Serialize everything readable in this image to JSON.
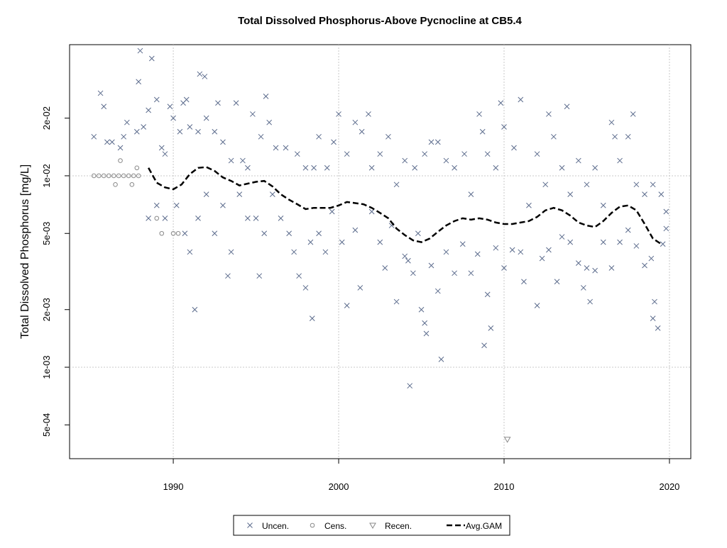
{
  "chart_data": {
    "type": "scatter",
    "title": "Total Dissolved Phosphorus-Above Pycnocline at CB5.4",
    "y_label": "Total Dissolved Phosphorus [mg/L]",
    "log_y": true,
    "grid": true,
    "legend_position": "bottom",
    "xlim": [
      1983.73,
      2021.29
    ],
    "ylim": [
      0.000333,
      0.0484
    ],
    "xticks": [
      1990,
      2000,
      2010,
      2020
    ],
    "yticks": [
      {
        "value": 0.0005,
        "label": "5e-04"
      },
      {
        "value": 0.001,
        "label": "1e-03"
      },
      {
        "value": 0.002,
        "label": "2e-03"
      },
      {
        "value": 0.005,
        "label": "5e-03"
      },
      {
        "value": 0.01,
        "label": "1e-02"
      },
      {
        "value": 0.02,
        "label": "2e-02"
      }
    ],
    "ygrid": [
      0.001,
      0.01
    ],
    "series": [
      {
        "name": "Uncen.",
        "marker": "x",
        "color": "#5b6b8c",
        "x": [
          1985.2,
          1985.6,
          1985.8,
          1986.0,
          1986.3,
          1986.8,
          1987.0,
          1987.2,
          1987.8,
          1987.9,
          1988.0,
          1988.2,
          1988.5,
          1988.7,
          1989.0,
          1989.3,
          1989.5,
          1989.8,
          1990.0,
          1990.4,
          1990.6,
          1990.8,
          1991.0,
          1991.5,
          1991.6,
          1991.9,
          1992.0,
          1992.5,
          1992.7,
          1993.0,
          1993.5,
          1993.8,
          1994.2,
          1994.5,
          1994.8,
          1995.3,
          1995.6,
          1995.8,
          1996.2,
          1996.8,
          1997.5,
          1998.0,
          1998.5,
          1998.8,
          1999.3,
          1999.7,
          2000.0,
          2000.5,
          2001.0,
          2001.4,
          2001.8,
          2002.0,
          2002.5,
          2003.0,
          2003.5,
          2004.0,
          2004.6,
          2005.2,
          2005.6,
          2006.0,
          2006.5,
          2007.0,
          2007.6,
          2008.0,
          2008.5,
          2008.7,
          2009.0,
          2009.5,
          2009.8,
          2010.0,
          2010.6,
          2011.0,
          2011.5,
          2012.0,
          2012.5,
          2012.7,
          2013.0,
          2013.5,
          2013.8,
          2014.0,
          2014.5,
          2015.0,
          2015.5,
          2016.0,
          2016.5,
          2016.7,
          2017.0,
          2017.5,
          2017.8,
          2018.0,
          2018.5,
          2019.0,
          2019.5,
          2019.8,
          1988.5,
          1989.0,
          1989.5,
          1990.2,
          1990.7,
          1991.0,
          1991.3,
          1991.5,
          1992.0,
          1992.5,
          1993.0,
          1993.3,
          1993.5,
          1994.0,
          1994.5,
          1995.0,
          1995.2,
          1995.5,
          1996.0,
          1996.5,
          1997.0,
          1997.3,
          1997.6,
          1998.0,
          1998.3,
          1998.4,
          1998.8,
          1999.2,
          1999.6,
          2000.2,
          2000.5,
          2001.0,
          2001.3,
          2002.0,
          2002.5,
          2002.8,
          2003.2,
          2003.5,
          2004.0,
          2004.2,
          2004.3,
          2004.5,
          2004.8,
          2005.0,
          2005.2,
          2005.3,
          2005.6,
          2006.0,
          2006.2,
          2006.5,
          2007.0,
          2007.5,
          2008.0,
          2008.4,
          2008.8,
          2009.0,
          2009.2,
          2009.5,
          2010.0,
          2010.5,
          2011.0,
          2011.2,
          2012.0,
          2012.3,
          2012.7,
          2013.2,
          2013.5,
          2014.0,
          2014.5,
          2014.8,
          2015.0,
          2015.2,
          2015.5,
          2016.0,
          2016.5,
          2017.0,
          2017.5,
          2018.0,
          2018.5,
          2018.9,
          2019.0,
          2019.1,
          2019.3,
          2019.6,
          2019.8
        ],
        "values": [
          0.016,
          0.027,
          0.023,
          0.015,
          0.015,
          0.014,
          0.016,
          0.019,
          0.017,
          0.031,
          0.045,
          0.018,
          0.022,
          0.041,
          0.025,
          0.014,
          0.013,
          0.023,
          0.02,
          0.017,
          0.024,
          0.025,
          0.018,
          0.017,
          0.034,
          0.033,
          0.02,
          0.017,
          0.024,
          0.015,
          0.012,
          0.024,
          0.012,
          0.011,
          0.021,
          0.016,
          0.026,
          0.019,
          0.014,
          0.014,
          0.013,
          0.011,
          0.011,
          0.016,
          0.011,
          0.015,
          0.021,
          0.013,
          0.019,
          0.017,
          0.021,
          0.011,
          0.013,
          0.016,
          0.009,
          0.012,
          0.011,
          0.013,
          0.015,
          0.015,
          0.012,
          0.011,
          0.013,
          0.008,
          0.021,
          0.017,
          0.013,
          0.011,
          0.024,
          0.018,
          0.014,
          0.025,
          0.007,
          0.013,
          0.009,
          0.021,
          0.016,
          0.011,
          0.023,
          0.008,
          0.012,
          0.009,
          0.011,
          0.007,
          0.019,
          0.016,
          0.012,
          0.016,
          0.021,
          0.009,
          0.008,
          0.009,
          0.008,
          0.0065,
          0.006,
          0.007,
          0.006,
          0.007,
          0.005,
          0.004,
          0.002,
          0.006,
          0.008,
          0.005,
          0.007,
          0.003,
          0.004,
          0.008,
          0.006,
          0.006,
          0.003,
          0.005,
          0.008,
          0.006,
          0.005,
          0.004,
          0.003,
          0.0026,
          0.0045,
          0.0018,
          0.005,
          0.004,
          0.0065,
          0.0045,
          0.0021,
          0.0052,
          0.0026,
          0.0065,
          0.0045,
          0.0033,
          0.0055,
          0.0022,
          0.0038,
          0.0036,
          0.0008,
          0.0031,
          0.005,
          0.002,
          0.0017,
          0.0015,
          0.0034,
          0.0025,
          0.0011,
          0.004,
          0.0031,
          0.0044,
          0.0031,
          0.0039,
          0.0013,
          0.0024,
          0.0016,
          0.0042,
          0.0033,
          0.0041,
          0.004,
          0.0028,
          0.0021,
          0.0037,
          0.0041,
          0.0028,
          0.0048,
          0.0045,
          0.0035,
          0.0026,
          0.0033,
          0.0022,
          0.0032,
          0.0045,
          0.0033,
          0.0045,
          0.0052,
          0.0043,
          0.0034,
          0.0037,
          0.0018,
          0.0022,
          0.0016,
          0.0044,
          0.0053
        ]
      },
      {
        "name": "Cens.",
        "marker": "circle",
        "color": "#888888",
        "x": [
          1985.2,
          1985.5,
          1985.8,
          1986.1,
          1986.4,
          1986.7,
          1987.0,
          1987.3,
          1987.6,
          1987.9,
          1986.5,
          1987.5,
          1986.8,
          1987.8,
          1989.3,
          1990.0,
          1990.3,
          1989.0
        ],
        "values": [
          0.01,
          0.01,
          0.01,
          0.01,
          0.01,
          0.01,
          0.01,
          0.01,
          0.01,
          0.01,
          0.009,
          0.009,
          0.012,
          0.011,
          0.005,
          0.005,
          0.005,
          0.006
        ]
      },
      {
        "name": "Recen.",
        "marker": "triangle-down",
        "color": "#888888",
        "x": [
          2010.2
        ],
        "values": [
          0.00042
        ]
      },
      {
        "name": "Avg.GAM",
        "marker": "line",
        "line_style": "dashed",
        "color": "#000000",
        "x": [
          1988.5,
          1989.0,
          1989.5,
          1990.0,
          1990.5,
          1991.0,
          1991.5,
          1992.0,
          1992.5,
          1993.0,
          1993.5,
          1994.0,
          1994.5,
          1995.0,
          1995.5,
          1996.0,
          1996.5,
          1997.0,
          1997.5,
          1998.0,
          1998.5,
          1999.0,
          1999.5,
          2000.0,
          2000.5,
          2001.0,
          2001.5,
          2002.0,
          2002.5,
          2003.0,
          2003.5,
          2004.0,
          2004.5,
          2005.0,
          2005.5,
          2006.0,
          2006.5,
          2007.0,
          2007.5,
          2008.0,
          2008.5,
          2009.0,
          2009.5,
          2010.0,
          2010.5,
          2011.0,
          2011.5,
          2012.0,
          2012.5,
          2013.0,
          2013.5,
          2014.0,
          2014.5,
          2015.0,
          2015.5,
          2016.0,
          2016.5,
          2017.0,
          2017.5,
          2018.0,
          2018.5,
          2019.0,
          2019.5
        ],
        "values": [
          0.011,
          0.0092,
          0.0087,
          0.0085,
          0.009,
          0.0102,
          0.011,
          0.0111,
          0.0106,
          0.0098,
          0.0094,
          0.0089,
          0.0091,
          0.0093,
          0.0094,
          0.0088,
          0.008,
          0.0075,
          0.0071,
          0.0067,
          0.0068,
          0.0068,
          0.0068,
          0.007,
          0.0073,
          0.0072,
          0.0071,
          0.0068,
          0.0064,
          0.006,
          0.0053,
          0.0049,
          0.0046,
          0.0045,
          0.0047,
          0.0051,
          0.0055,
          0.0058,
          0.006,
          0.0059,
          0.006,
          0.0059,
          0.0057,
          0.0056,
          0.0056,
          0.0057,
          0.0058,
          0.0061,
          0.0066,
          0.0068,
          0.0066,
          0.0062,
          0.0057,
          0.0055,
          0.0054,
          0.0058,
          0.0064,
          0.0069,
          0.007,
          0.0066,
          0.0056,
          0.0047,
          0.0044
        ]
      }
    ]
  }
}
